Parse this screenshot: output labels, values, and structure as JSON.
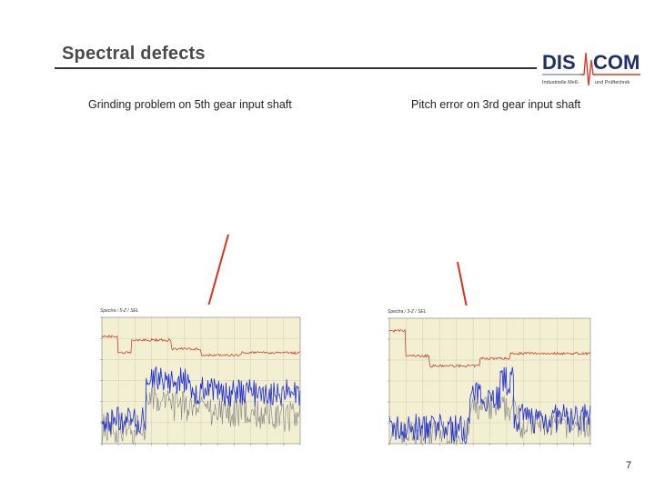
{
  "slide": {
    "title": "Spectral defects",
    "page_number": "7"
  },
  "logo": {
    "main": "DIS COM",
    "subtitle_left": "Industrielle Meß-",
    "subtitle_right": "und Prüftechnik",
    "colors": {
      "navy": "#1f2f6a",
      "pulse": "#d93a2b"
    }
  },
  "panels": [
    {
      "caption": "Grinding problem on 5th gear input shaft",
      "chart_label": "Spectra / 5-Z / SEL",
      "arrow_color": "#e0301e"
    },
    {
      "caption": "Pitch error on 3rd gear input shaft",
      "chart_label": "Spectra / 3-Z / SEL",
      "arrow_color": "#e0301e"
    }
  ],
  "chart_data": [
    {
      "type": "line",
      "title": "",
      "plot_background": "#f3efd2",
      "series_colors": {
        "envelope": "#cc2a1a",
        "spectrum": "#1a2ad4",
        "reference": "#808080"
      },
      "grid": true
    },
    {
      "type": "line",
      "title": "",
      "plot_background": "#f3efd2",
      "series_colors": {
        "envelope": "#cc2a1a",
        "spectrum": "#1a2ad4",
        "reference": "#808080"
      },
      "grid": true
    }
  ]
}
